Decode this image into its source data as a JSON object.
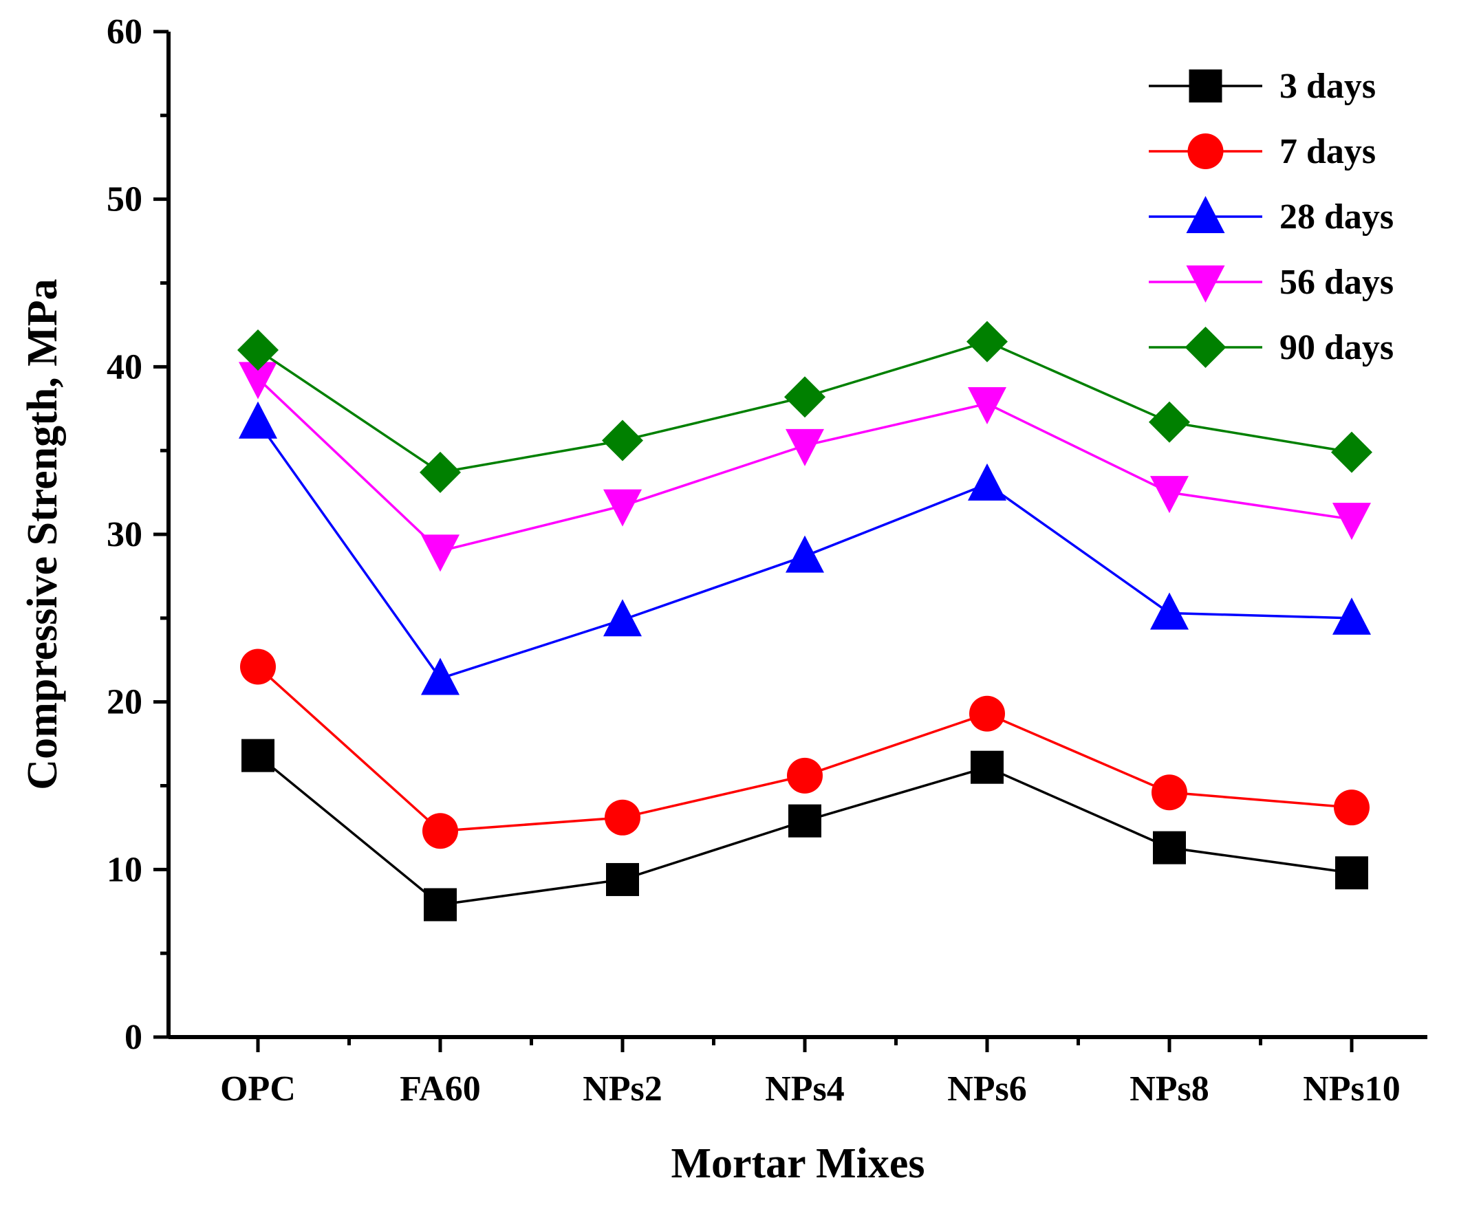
{
  "chart_data": {
    "type": "line",
    "title": "",
    "xlabel": "Mortar Mixes",
    "ylabel": "Compressive Strength, MPa",
    "categories": [
      "OPC",
      "FA60",
      "NPs2",
      "NPs4",
      "NPs6",
      "NPs8",
      "NPs10"
    ],
    "ylim": [
      0,
      60
    ],
    "yticks": [
      0,
      10,
      20,
      30,
      40,
      50,
      60
    ],
    "grid": false,
    "legend_position": "top-right",
    "series": [
      {
        "name": "3 days",
        "color": "#000000",
        "marker": "square",
        "values": [
          16.8,
          7.9,
          9.4,
          12.9,
          16.1,
          11.3,
          9.8
        ]
      },
      {
        "name": "7 days",
        "color": "#ff0000",
        "marker": "circle",
        "values": [
          22.1,
          12.3,
          13.1,
          15.6,
          19.3,
          14.6,
          13.7
        ]
      },
      {
        "name": "28 days",
        "color": "#0000ff",
        "marker": "triangle-up",
        "values": [
          36.7,
          21.4,
          24.9,
          28.7,
          33.0,
          25.3,
          25.0
        ]
      },
      {
        "name": "56 days",
        "color": "#ff00ff",
        "marker": "triangle-down",
        "values": [
          39.3,
          29.0,
          31.7,
          35.3,
          37.8,
          32.5,
          30.9
        ]
      },
      {
        "name": "90 days",
        "color": "#008000",
        "marker": "diamond",
        "values": [
          41.0,
          33.7,
          35.6,
          38.2,
          41.5,
          36.7,
          34.9
        ]
      }
    ]
  }
}
